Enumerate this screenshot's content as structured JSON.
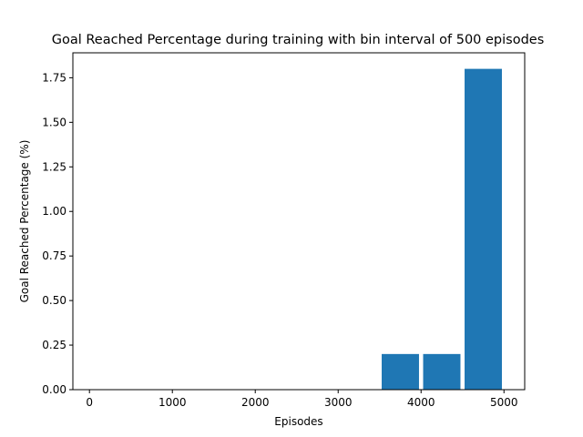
{
  "chart_data": {
    "type": "bar",
    "title": "Goal Reached Percentage during training with bin interval of 500 episodes",
    "xlabel": "Episodes",
    "ylabel": "Goal Reached Percentage (%)",
    "bar_color": "#1f77b4",
    "bin_width": 500,
    "bins": [
      {
        "start": 0,
        "value": 0.0
      },
      {
        "start": 500,
        "value": 0.0
      },
      {
        "start": 1000,
        "value": 0.0
      },
      {
        "start": 1500,
        "value": 0.0
      },
      {
        "start": 2000,
        "value": 0.0
      },
      {
        "start": 2500,
        "value": 0.0
      },
      {
        "start": 3000,
        "value": 0.0
      },
      {
        "start": 3500,
        "value": 0.2
      },
      {
        "start": 4000,
        "value": 0.2
      },
      {
        "start": 4500,
        "value": 1.8
      }
    ],
    "xlim": [
      -200,
      5250
    ],
    "ylim": [
      0,
      1.89
    ],
    "xticks": [
      0,
      1000,
      2000,
      3000,
      4000,
      5000
    ],
    "xtick_labels": [
      "0",
      "1000",
      "2000",
      "3000",
      "4000",
      "5000"
    ],
    "yticks": [
      0,
      0.25,
      0.5,
      0.75,
      1.0,
      1.25,
      1.5,
      1.75
    ],
    "ytick_labels": [
      "0.00",
      "0.25",
      "0.50",
      "0.75",
      "1.00",
      "1.25",
      "1.50",
      "1.75"
    ],
    "grid": false,
    "legend": false
  }
}
